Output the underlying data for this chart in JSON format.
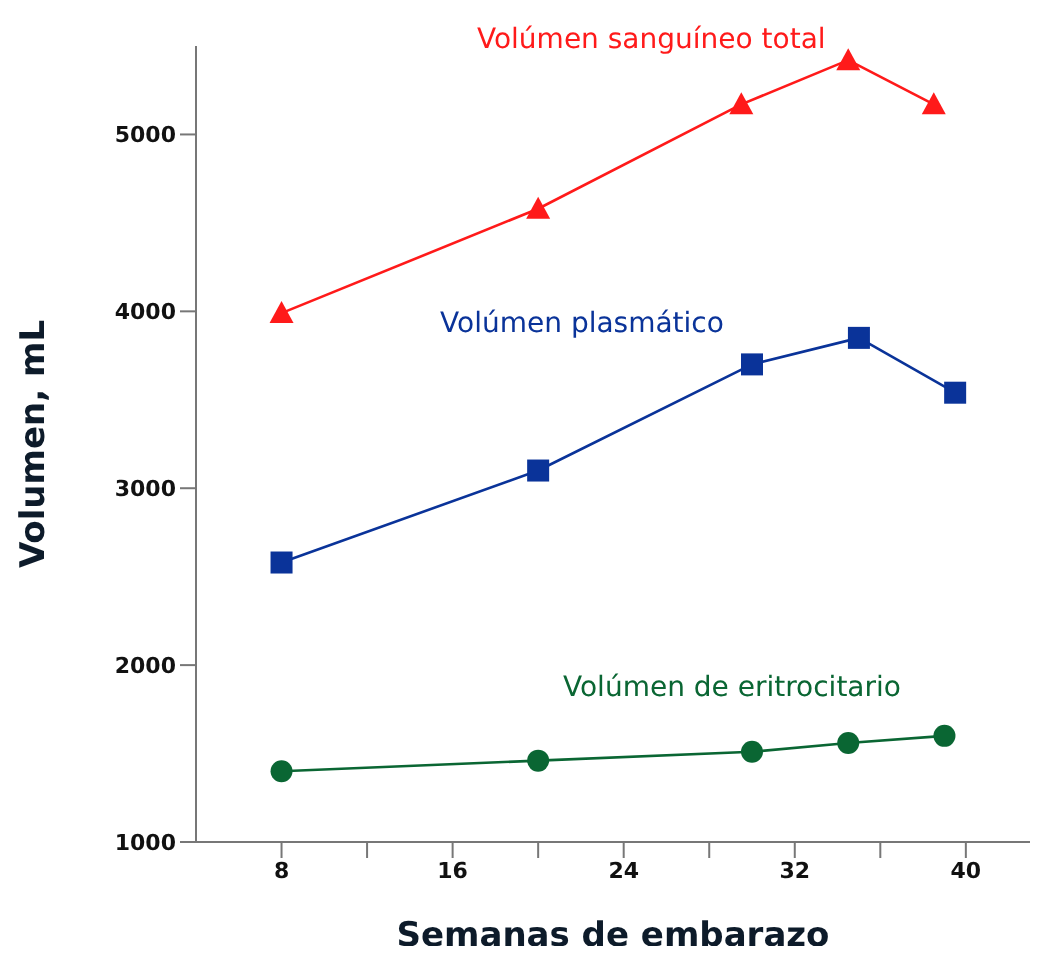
{
  "chart_data": {
    "type": "line",
    "xlabel": "Semanas de embarazo",
    "ylabel": "Volumen, mL",
    "xlim": [
      4,
      43
    ],
    "ylim": [
      1000,
      5500
    ],
    "xticks": [
      8,
      {
        "value": 12,
        "label": null
      },
      16,
      {
        "value": 20,
        "label": null
      },
      24,
      {
        "value": 28,
        "label": null
      },
      32,
      {
        "value": 36,
        "label": null
      },
      40
    ],
    "yticks": [
      1000,
      2000,
      3000,
      4000,
      5000
    ],
    "line_style": "solid",
    "series": [
      {
        "name": "Volúmen sanguíneo total",
        "color": "#ff1a1a",
        "marker": "triangle",
        "x": [
          8,
          20,
          29.5,
          34.5,
          38.5
        ],
        "values": [
          3990,
          4580,
          5170,
          5420,
          5170
        ]
      },
      {
        "name": "Volúmen plasmático",
        "color": "#0a3399",
        "marker": "square",
        "x": [
          8,
          20,
          30,
          35,
          39.5
        ],
        "values": [
          2580,
          3100,
          3700,
          3850,
          3540
        ]
      },
      {
        "name": "Volúmen de eritrocitario",
        "color": "#0a6633",
        "marker": "circle",
        "x": [
          8,
          20,
          30,
          34.5,
          39
        ],
        "values": [
          1400,
          1460,
          1510,
          1560,
          1600
        ]
      }
    ]
  }
}
